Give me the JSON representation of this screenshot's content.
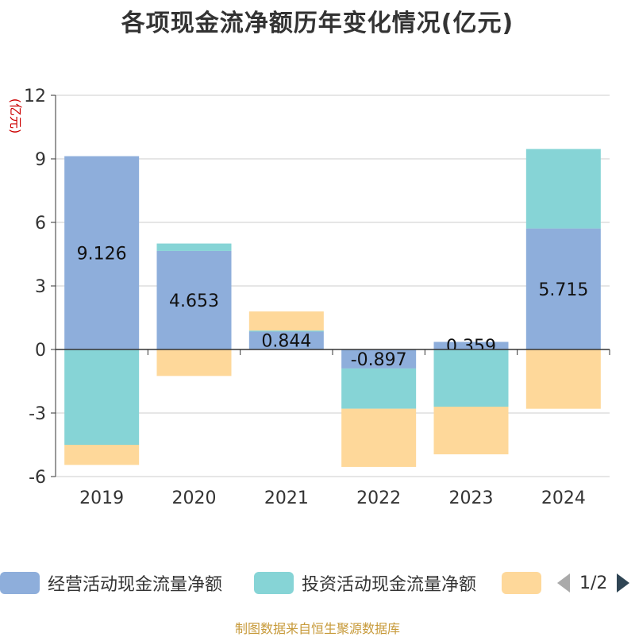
{
  "title": "各项现金流净额历年变化情况(亿元)",
  "footer": "制图数据来自恒生聚源数据库",
  "legend": {
    "items": [
      {
        "label": "经营活动现金流量净额",
        "color": "#8eaedb"
      },
      {
        "label": "投资活动现金流量净额",
        "color": "#86d4d6"
      },
      {
        "label": "",
        "color": "#fed89a"
      }
    ],
    "page": "1/2"
  },
  "chart_data": {
    "type": "bar",
    "stacked": true,
    "categories": [
      "2019",
      "2020",
      "2021",
      "2022",
      "2023",
      "2024"
    ],
    "ylabel": "(亿元)",
    "ylim": [
      -6,
      12
    ],
    "yticks": [
      -6,
      -3,
      0,
      3,
      6,
      9,
      12
    ],
    "grid": true,
    "series": [
      {
        "name": "经营活动现金流量净额",
        "color": "#8eaedb",
        "values": [
          9.126,
          4.653,
          0.844,
          -0.897,
          0.359,
          5.715
        ],
        "labels": [
          "9.126",
          "4.653",
          "0.844",
          "-0.897",
          "0.359",
          "5.715"
        ]
      },
      {
        "name": "投资活动现金流量净额",
        "color": "#86d4d6",
        "values": [
          -4.5,
          0.35,
          0.05,
          -1.9,
          -2.7,
          3.75
        ]
      },
      {
        "color": "#fed89a",
        "values": [
          -0.95,
          -1.25,
          0.9,
          -2.75,
          -2.25,
          -2.8
        ]
      }
    ]
  }
}
